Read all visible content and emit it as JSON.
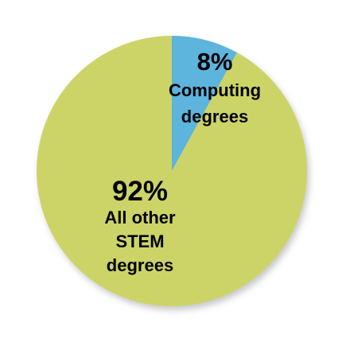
{
  "colors": {
    "background": "#ffffff",
    "shadow": "#c9c9c9",
    "slice_computing": "#5db4dd",
    "slice_other": "#cdd467"
  },
  "chart_data": {
    "type": "pie",
    "title": "",
    "start_angle_deg": 0,
    "direction": "clockwise",
    "slices": [
      {
        "key": "computing",
        "value": 8,
        "percent_label": "8%",
        "label_lines": [
          "Computing",
          "degrees"
        ],
        "color": "#5db4dd"
      },
      {
        "key": "other",
        "value": 92,
        "percent_label": "92%",
        "label_lines": [
          "All other",
          "STEM",
          "degrees"
        ],
        "color": "#cdd467"
      }
    ]
  }
}
